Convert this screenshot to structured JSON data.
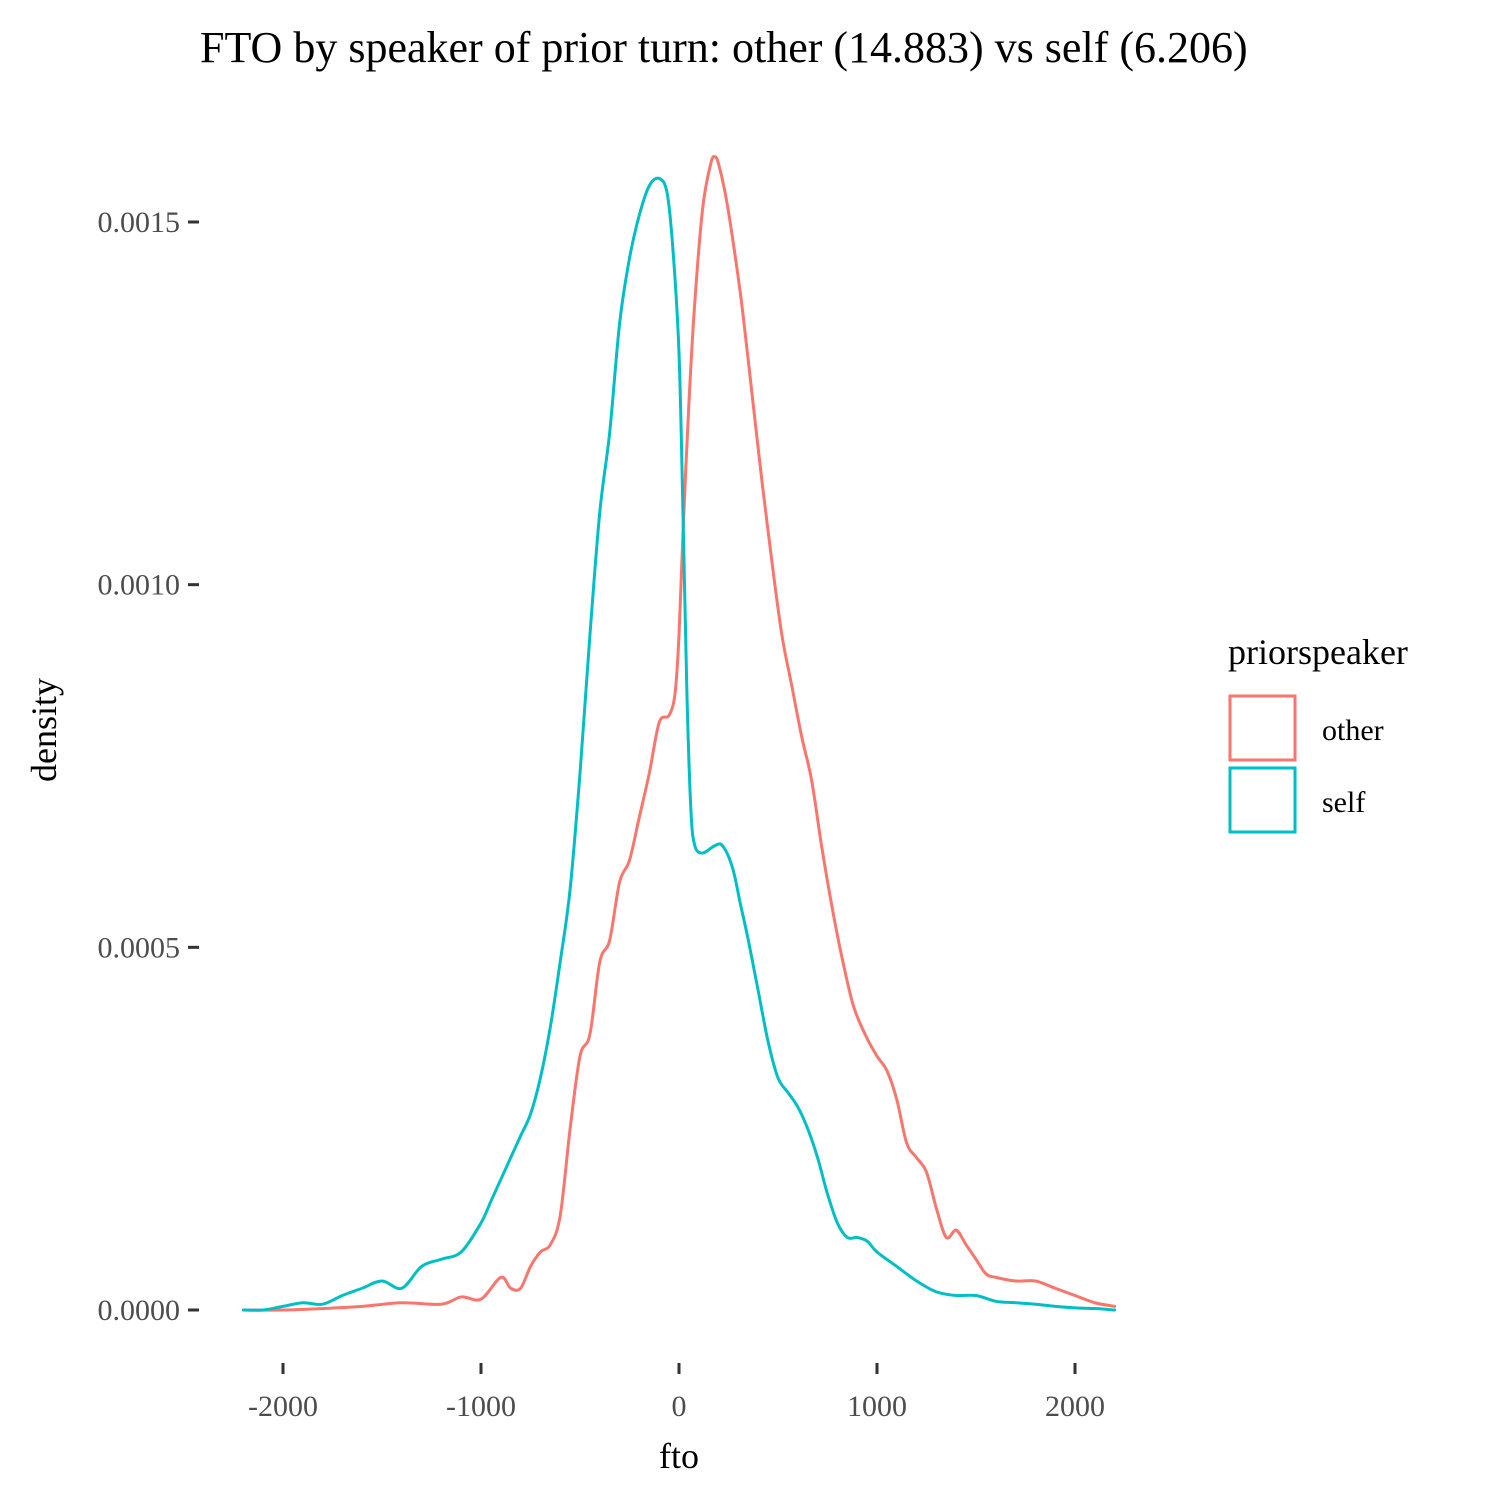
{
  "chart_data": {
    "type": "line",
    "title": "FTO by speaker of prior turn: other (14.883) vs self (6.206)",
    "xlabel": "fto",
    "ylabel": "density",
    "xlim": [
      -2200,
      2200
    ],
    "ylim": [
      0,
      0.0016
    ],
    "x_ticks": [
      -2000,
      -1000,
      0,
      1000,
      2000
    ],
    "x_tick_labels": [
      "-2000",
      "-1000",
      "0",
      "1000",
      "2000"
    ],
    "y_ticks": [
      0,
      0.0005,
      0.001,
      0.0015
    ],
    "y_tick_labels": [
      "0.0000",
      "0.0005",
      "0.0010",
      "0.0015"
    ],
    "grid": false,
    "legend": {
      "title": "priorspeaker",
      "placement": "right",
      "entries": [
        "other",
        "self"
      ]
    },
    "series": [
      {
        "name": "other",
        "color": "#f8766d",
        "points": [
          [
            -2200,
            0
          ],
          [
            -2000,
            0
          ],
          [
            -1800,
            2e-06
          ],
          [
            -1600,
            5e-06
          ],
          [
            -1400,
            1e-05
          ],
          [
            -1200,
            8e-06
          ],
          [
            -1100,
            1.8e-05
          ],
          [
            -1000,
            1.5e-05
          ],
          [
            -900,
            4.5e-05
          ],
          [
            -850,
            3e-05
          ],
          [
            -800,
            3e-05
          ],
          [
            -750,
            6e-05
          ],
          [
            -700,
            8e-05
          ],
          [
            -650,
            9e-05
          ],
          [
            -600,
            0.00013
          ],
          [
            -550,
            0.00025
          ],
          [
            -500,
            0.00035
          ],
          [
            -450,
            0.00038
          ],
          [
            -400,
            0.00048
          ],
          [
            -350,
            0.00051
          ],
          [
            -300,
            0.00059
          ],
          [
            -250,
            0.00062
          ],
          [
            -200,
            0.00068
          ],
          [
            -150,
            0.00074
          ],
          [
            -100,
            0.00081
          ],
          [
            -50,
            0.00082
          ],
          [
            -20,
            0.00085
          ],
          [
            0,
            0.00093
          ],
          [
            20,
            0.00107
          ],
          [
            50,
            0.00125
          ],
          [
            80,
            0.00139
          ],
          [
            120,
            0.00152
          ],
          [
            160,
            0.00158
          ],
          [
            180,
            0.00159
          ],
          [
            200,
            0.00158
          ],
          [
            240,
            0.00153
          ],
          [
            280,
            0.00146
          ],
          [
            320,
            0.00138
          ],
          [
            370,
            0.00126
          ],
          [
            420,
            0.00114
          ],
          [
            470,
            0.00103
          ],
          [
            520,
            0.00093
          ],
          [
            570,
            0.00086
          ],
          [
            620,
            0.00079
          ],
          [
            670,
            0.00073
          ],
          [
            720,
            0.00064
          ],
          [
            770,
            0.00056
          ],
          [
            820,
            0.00049
          ],
          [
            880,
            0.00042
          ],
          [
            940,
            0.00038
          ],
          [
            1000,
            0.00035
          ],
          [
            1050,
            0.00033
          ],
          [
            1100,
            0.00029
          ],
          [
            1150,
            0.00023
          ],
          [
            1200,
            0.00021
          ],
          [
            1250,
            0.00019
          ],
          [
            1300,
            0.00014
          ],
          [
            1350,
            0.0001
          ],
          [
            1400,
            0.00011
          ],
          [
            1450,
            9e-05
          ],
          [
            1500,
            7e-05
          ],
          [
            1550,
            5e-05
          ],
          [
            1600,
            4.5e-05
          ],
          [
            1700,
            4e-05
          ],
          [
            1800,
            4e-05
          ],
          [
            1900,
            3e-05
          ],
          [
            2000,
            2e-05
          ],
          [
            2100,
            1e-05
          ],
          [
            2200,
            5e-06
          ]
        ]
      },
      {
        "name": "self",
        "color": "#00bfc4",
        "points": [
          [
            -2200,
            0
          ],
          [
            -2100,
            0
          ],
          [
            -2000,
            5e-06
          ],
          [
            -1900,
            1e-05
          ],
          [
            -1800,
            8e-06
          ],
          [
            -1700,
            2e-05
          ],
          [
            -1600,
            3e-05
          ],
          [
            -1500,
            4e-05
          ],
          [
            -1400,
            3e-05
          ],
          [
            -1300,
            6e-05
          ],
          [
            -1200,
            7e-05
          ],
          [
            -1100,
            8e-05
          ],
          [
            -1000,
            0.00012
          ],
          [
            -950,
            0.00015
          ],
          [
            -900,
            0.00018
          ],
          [
            -850,
            0.00021
          ],
          [
            -800,
            0.00024
          ],
          [
            -750,
            0.00027
          ],
          [
            -700,
            0.00032
          ],
          [
            -650,
            0.00039
          ],
          [
            -600,
            0.00048
          ],
          [
            -550,
            0.00058
          ],
          [
            -500,
            0.00074
          ],
          [
            -450,
            0.00093
          ],
          [
            -400,
            0.0011
          ],
          [
            -350,
            0.00121
          ],
          [
            -300,
            0.00136
          ],
          [
            -250,
            0.00145
          ],
          [
            -200,
            0.00151
          ],
          [
            -150,
            0.00155
          ],
          [
            -100,
            0.00156
          ],
          [
            -60,
            0.00154
          ],
          [
            -30,
            0.00146
          ],
          [
            0,
            0.00132
          ],
          [
            20,
            0.0011
          ],
          [
            40,
            0.00085
          ],
          [
            60,
            0.00069
          ],
          [
            80,
            0.00064
          ],
          [
            120,
            0.00063
          ],
          [
            180,
            0.00064
          ],
          [
            220,
            0.00064
          ],
          [
            270,
            0.00061
          ],
          [
            310,
            0.00056
          ],
          [
            350,
            0.00051
          ],
          [
            400,
            0.00044
          ],
          [
            450,
            0.00037
          ],
          [
            500,
            0.00032
          ],
          [
            550,
            0.0003
          ],
          [
            600,
            0.00028
          ],
          [
            650,
            0.00025
          ],
          [
            700,
            0.00021
          ],
          [
            750,
            0.00016
          ],
          [
            800,
            0.00012
          ],
          [
            850,
            0.0001
          ],
          [
            900,
            0.0001
          ],
          [
            950,
            9.5e-05
          ],
          [
            1000,
            8e-05
          ],
          [
            1100,
            6e-05
          ],
          [
            1200,
            4e-05
          ],
          [
            1300,
            2.5e-05
          ],
          [
            1400,
            2e-05
          ],
          [
            1500,
            2e-05
          ],
          [
            1600,
            1.2e-05
          ],
          [
            1700,
            1e-05
          ],
          [
            1800,
            8e-06
          ],
          [
            1900,
            5e-06
          ],
          [
            2000,
            3e-06
          ],
          [
            2100,
            2e-06
          ],
          [
            2200,
            0
          ]
        ]
      }
    ]
  }
}
